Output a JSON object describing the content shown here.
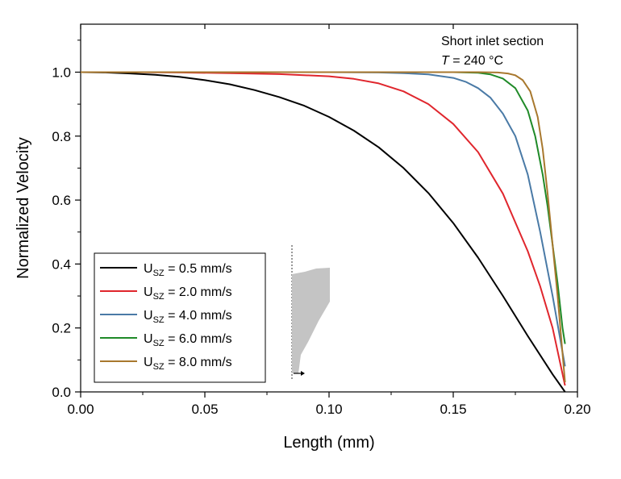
{
  "chart_data": {
    "type": "line",
    "xlabel": "Length (mm)",
    "ylabel": "Normalized Velocity",
    "xlim": [
      0.0,
      0.2
    ],
    "ylim": [
      0.0,
      1.15
    ],
    "x_ticks": [
      "0.00",
      "0.05",
      "0.10",
      "0.15",
      "0.20"
    ],
    "y_ticks": [
      "0.0",
      "0.2",
      "0.4",
      "0.6",
      "0.8",
      "1.0"
    ],
    "grid": false,
    "legend_position": "bottom-left",
    "annotation": {
      "line1": "Short inlet section",
      "symbol": "T",
      "line2_rest": " = 240 °C"
    },
    "series": [
      {
        "name": "U_SZ = 0.5 mm/s",
        "legend_prefix": "U",
        "legend_sub": "SZ",
        "legend_rest": " = 0.5 mm/s",
        "color": "#000000",
        "x": [
          0.0,
          0.01,
          0.02,
          0.03,
          0.04,
          0.05,
          0.06,
          0.07,
          0.08,
          0.09,
          0.1,
          0.11,
          0.12,
          0.13,
          0.14,
          0.15,
          0.16,
          0.17,
          0.18,
          0.19,
          0.195
        ],
        "y": [
          1.0,
          0.999,
          0.996,
          0.992,
          0.985,
          0.975,
          0.962,
          0.944,
          0.922,
          0.895,
          0.86,
          0.817,
          0.765,
          0.7,
          0.622,
          0.528,
          0.42,
          0.3,
          0.175,
          0.055,
          0.0
        ]
      },
      {
        "name": "U_SZ = 2.0 mm/s",
        "legend_prefix": "U",
        "legend_sub": "SZ",
        "legend_rest": " = 2.0 mm/s",
        "color": "#e0262d",
        "x": [
          0.0,
          0.02,
          0.04,
          0.06,
          0.08,
          0.1,
          0.11,
          0.12,
          0.13,
          0.14,
          0.15,
          0.16,
          0.17,
          0.18,
          0.185,
          0.19,
          0.195
        ],
        "y": [
          1.0,
          1.0,
          0.999,
          0.997,
          0.994,
          0.987,
          0.979,
          0.965,
          0.94,
          0.9,
          0.838,
          0.75,
          0.62,
          0.44,
          0.33,
          0.2,
          0.02
        ]
      },
      {
        "name": "U_SZ = 4.0 mm/s",
        "legend_prefix": "U",
        "legend_sub": "SZ",
        "legend_rest": " = 4.0 mm/s",
        "color": "#4a7aa6",
        "x": [
          0.0,
          0.06,
          0.1,
          0.12,
          0.13,
          0.14,
          0.15,
          0.155,
          0.16,
          0.165,
          0.17,
          0.175,
          0.18,
          0.185,
          0.19,
          0.195
        ],
        "y": [
          1.0,
          1.0,
          1.0,
          0.999,
          0.997,
          0.993,
          0.982,
          0.97,
          0.95,
          0.92,
          0.87,
          0.8,
          0.68,
          0.5,
          0.3,
          0.08
        ]
      },
      {
        "name": "U_SZ = 6.0 mm/s",
        "legend_prefix": "U",
        "legend_sub": "SZ",
        "legend_rest": " = 6.0 mm/s",
        "color": "#1f8a28",
        "x": [
          0.0,
          0.1,
          0.15,
          0.16,
          0.165,
          0.17,
          0.175,
          0.18,
          0.183,
          0.186,
          0.188,
          0.19,
          0.192,
          0.194,
          0.195
        ],
        "y": [
          1.0,
          1.0,
          1.0,
          0.998,
          0.993,
          0.98,
          0.95,
          0.88,
          0.8,
          0.68,
          0.58,
          0.46,
          0.34,
          0.2,
          0.15
        ]
      },
      {
        "name": "U_SZ = 8.0 mm/s",
        "legend_prefix": "U",
        "legend_sub": "SZ",
        "legend_rest": " = 8.0 mm/s",
        "color": "#a8782e",
        "x": [
          0.0,
          0.1,
          0.16,
          0.168,
          0.172,
          0.175,
          0.178,
          0.181,
          0.184,
          0.186,
          0.188,
          0.19,
          0.192,
          0.194,
          0.195
        ],
        "y": [
          1.0,
          1.0,
          1.0,
          0.999,
          0.996,
          0.99,
          0.975,
          0.94,
          0.86,
          0.76,
          0.62,
          0.46,
          0.3,
          0.12,
          0.03
        ]
      }
    ]
  }
}
